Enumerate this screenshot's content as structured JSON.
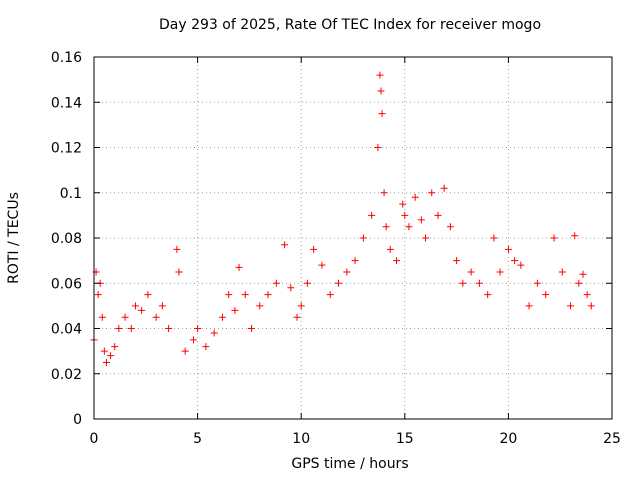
{
  "chart_data": {
    "type": "scatter",
    "title": "Day 293 of 2025, Rate Of TEC Index for receiver mogo",
    "xlabel": "GPS time / hours",
    "ylabel": "ROTI / TECUs",
    "xlim": [
      0,
      25
    ],
    "ylim": [
      0,
      0.16
    ],
    "xticks": [
      0,
      5,
      10,
      15,
      20,
      25
    ],
    "yticks": [
      0,
      0.02,
      0.04,
      0.06,
      0.08,
      0.1,
      0.12,
      0.14,
      0.16
    ],
    "grid": true,
    "marker": "+",
    "color": "#ff0000",
    "series": [
      {
        "x": [
          0.0,
          0.1,
          0.2,
          0.3,
          0.4,
          0.5,
          0.6,
          0.8,
          1.0,
          1.2,
          1.5,
          1.8,
          2.0,
          2.3,
          2.6,
          3.0,
          3.3,
          3.6,
          4.0,
          4.1,
          4.4,
          4.8,
          5.0,
          5.4,
          5.8,
          6.2,
          6.5,
          6.8,
          7.0,
          7.3,
          7.6,
          8.0,
          8.4,
          8.8,
          9.2,
          9.5,
          9.8,
          10.0,
          10.3,
          10.6,
          11.0,
          11.4,
          11.8,
          12.2,
          12.6,
          13.0,
          13.4,
          13.7,
          13.8,
          13.85,
          13.9,
          14.0,
          14.1,
          14.3,
          14.6,
          14.9,
          15.0,
          15.2,
          15.5,
          15.8,
          16.0,
          16.3,
          16.6,
          16.9,
          17.2,
          17.5,
          17.8,
          18.2,
          18.6,
          19.0,
          19.3,
          19.6,
          20.0,
          20.3,
          20.6,
          21.0,
          21.4,
          21.8,
          22.2,
          22.6,
          23.0,
          23.2,
          23.4,
          23.6,
          23.8,
          24.0
        ],
        "y": [
          0.035,
          0.065,
          0.055,
          0.06,
          0.045,
          0.03,
          0.025,
          0.028,
          0.032,
          0.04,
          0.045,
          0.04,
          0.05,
          0.048,
          0.055,
          0.045,
          0.05,
          0.04,
          0.075,
          0.065,
          0.03,
          0.035,
          0.04,
          0.032,
          0.038,
          0.045,
          0.055,
          0.048,
          0.067,
          0.055,
          0.04,
          0.05,
          0.055,
          0.06,
          0.077,
          0.058,
          0.045,
          0.05,
          0.06,
          0.075,
          0.068,
          0.055,
          0.06,
          0.065,
          0.07,
          0.08,
          0.09,
          0.12,
          0.152,
          0.145,
          0.135,
          0.1,
          0.085,
          0.075,
          0.07,
          0.095,
          0.09,
          0.085,
          0.098,
          0.088,
          0.08,
          0.1,
          0.09,
          0.102,
          0.085,
          0.07,
          0.06,
          0.065,
          0.06,
          0.055,
          0.08,
          0.065,
          0.075,
          0.07,
          0.068,
          0.05,
          0.06,
          0.055,
          0.08,
          0.065,
          0.05,
          0.081,
          0.06,
          0.064,
          0.055,
          0.05
        ]
      }
    ]
  }
}
